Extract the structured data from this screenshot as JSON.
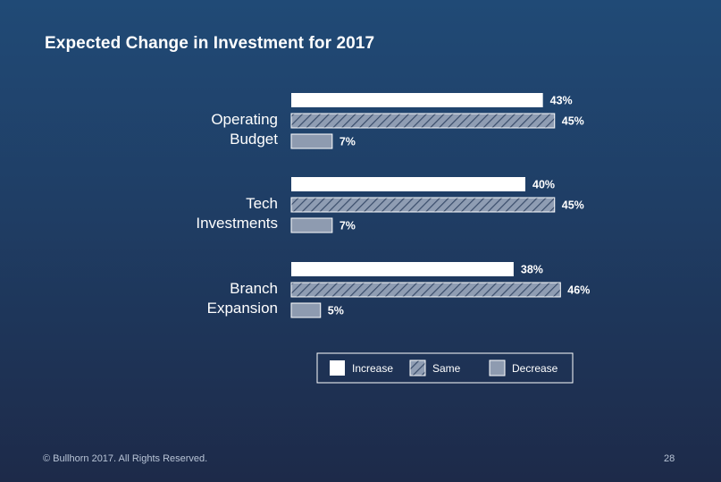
{
  "page": {
    "title": "Expected Change in Investment for 2017",
    "footer_left": "© Bullhorn 2017. All Rights Reserved.",
    "page_number": "28"
  },
  "chart_data": {
    "type": "bar",
    "orientation": "horizontal",
    "title": "Expected Change in Investment for 2017",
    "categories": [
      [
        "Operating",
        "Budget"
      ],
      [
        "Tech",
        "Investments"
      ],
      [
        "Branch",
        "Expansion"
      ]
    ],
    "series": [
      {
        "name": "Increase",
        "values": [
          43,
          40,
          38
        ],
        "labels": [
          "43%",
          "40%",
          "38%"
        ],
        "fill": "solid-white"
      },
      {
        "name": "Same",
        "values": [
          45,
          45,
          46
        ],
        "labels": [
          "45%",
          "45%",
          "46%"
        ],
        "fill": "hatched"
      },
      {
        "name": "Decrease",
        "values": [
          7,
          7,
          5
        ],
        "labels": [
          "7%",
          "7%",
          "5%"
        ],
        "fill": "solid-gray"
      }
    ],
    "unit": "%",
    "legend": {
      "placement": "bottom",
      "items": [
        "Increase",
        "Same",
        "Decrease"
      ]
    },
    "grid": false,
    "colors": {
      "increase": "#ffffff",
      "same_base": "#8f9db3",
      "same_hatch": "#3a4d6b",
      "decrease": "#8e9bb0",
      "bar_border": "#ffffff"
    }
  }
}
